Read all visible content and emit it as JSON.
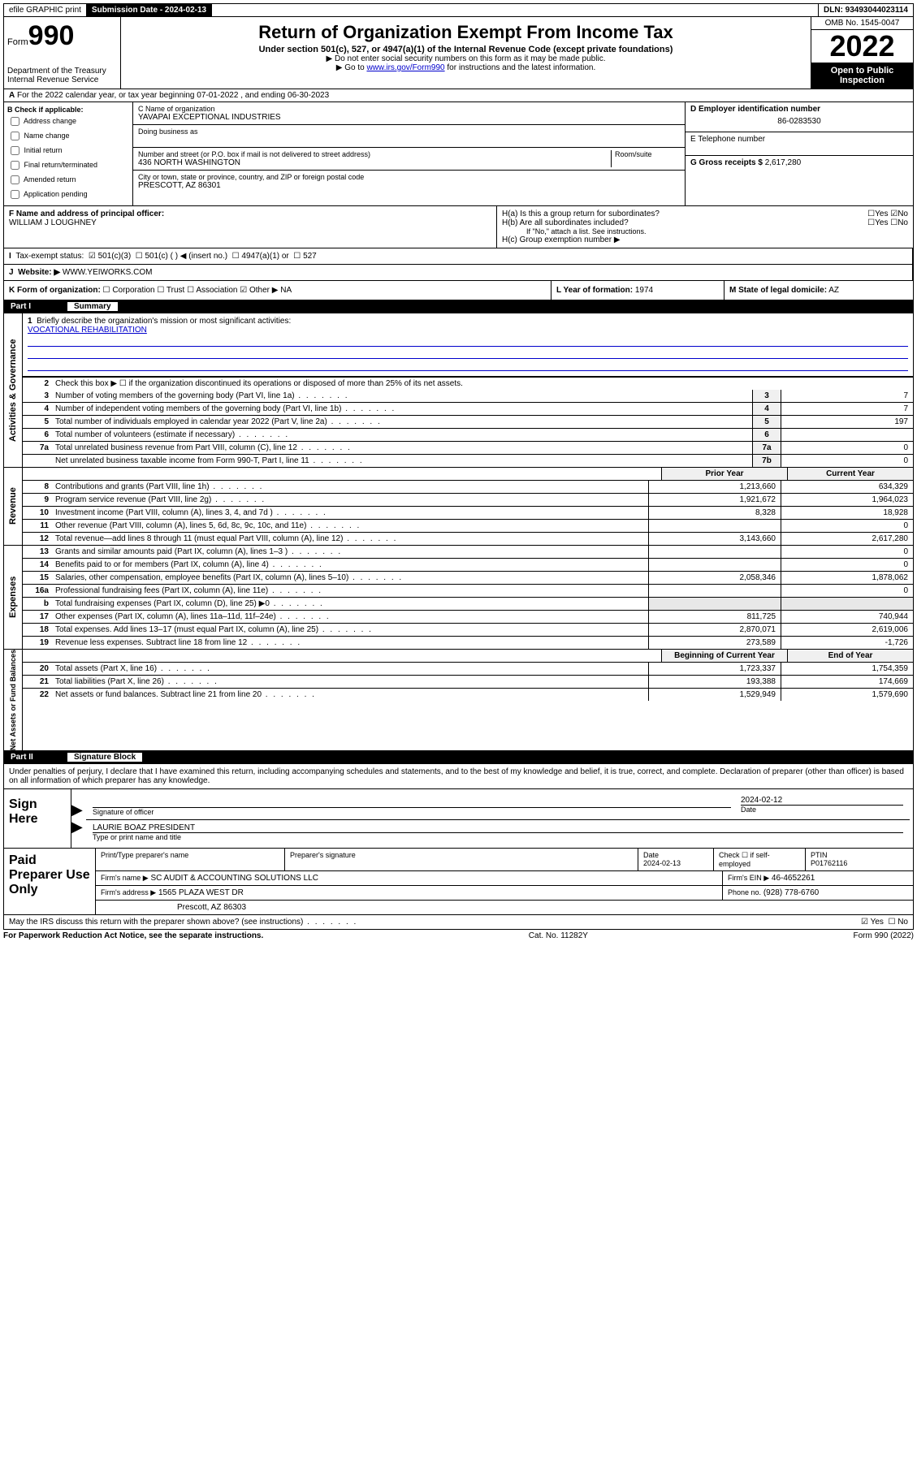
{
  "top": {
    "efile": "efile GRAPHIC print",
    "submission_label": "Submission Date - 2024-02-13",
    "dln": "DLN: 93493044023114"
  },
  "header": {
    "form_prefix": "Form",
    "form_number": "990",
    "dept": "Department of the Treasury",
    "irs": "Internal Revenue Service",
    "title": "Return of Organization Exempt From Income Tax",
    "subtitle": "Under section 501(c), 527, or 4947(a)(1) of the Internal Revenue Code (except private foundations)",
    "note1": "▶ Do not enter social security numbers on this form as it may be made public.",
    "note2_prefix": "▶ Go to ",
    "note2_link": "www.irs.gov/Form990",
    "note2_suffix": " for instructions and the latest information.",
    "omb": "OMB No. 1545-0047",
    "year": "2022",
    "open": "Open to Public Inspection"
  },
  "row_a": "For the 2022 calendar year, or tax year beginning 07-01-2022   , and ending 06-30-2023",
  "section_b": {
    "label": "B Check if applicable:",
    "opts": [
      "Address change",
      "Name change",
      "Initial return",
      "Final return/terminated",
      "Amended return",
      "Application pending"
    ]
  },
  "section_c": {
    "name_label": "C Name of organization",
    "name": "YAVAPAI EXCEPTIONAL INDUSTRIES",
    "dba_label": "Doing business as",
    "addr_label": "Number and street (or P.O. box if mail is not delivered to street address)",
    "room_label": "Room/suite",
    "addr": "436 NORTH WASHINGTON",
    "city_label": "City or town, state or province, country, and ZIP or foreign postal code",
    "city": "PRESCOTT, AZ  86301"
  },
  "section_d": {
    "label": "D Employer identification number",
    "ein": "86-0283530"
  },
  "section_e": {
    "label": "E Telephone number"
  },
  "section_g": {
    "label": "G Gross receipts $",
    "value": "2,617,280"
  },
  "section_f": {
    "label": "F  Name and address of principal officer:",
    "name": "WILLIAM J LOUGHNEY"
  },
  "section_h": {
    "ha": "H(a)  Is this a group return for subordinates?",
    "hb": "H(b)  Are all subordinates included?",
    "hb_note": "If \"No,\" attach a list. See instructions.",
    "hc": "H(c)  Group exemption number ▶",
    "yes": "Yes",
    "no": "No"
  },
  "section_i": {
    "label": "Tax-exempt status:",
    "o1": "501(c)(3)",
    "o2": "501(c) (  ) ◀ (insert no.)",
    "o3": "4947(a)(1) or",
    "o4": "527"
  },
  "section_j": {
    "label": "Website: ▶",
    "value": "WWW.YEIWORKS.COM"
  },
  "section_k": {
    "label": "K Form of organization:",
    "o1": "Corporation",
    "o2": "Trust",
    "o3": "Association",
    "o4": "Other ▶",
    "o4v": "NA"
  },
  "section_l": {
    "label": "L Year of formation:",
    "value": "1974"
  },
  "section_m": {
    "label": "M State of legal domicile:",
    "value": "AZ"
  },
  "part1": {
    "label": "Part I",
    "title": "Summary"
  },
  "summary": {
    "vtabs": [
      "Activities & Governance",
      "Revenue",
      "Expenses",
      "Net Assets or Fund Balances"
    ],
    "l1": "Briefly describe the organization's mission or most significant activities:",
    "mission": "VOCATIONAL REHABILITATION",
    "l2": "Check this box ▶ ☐  if the organization discontinued its operations or disposed of more than 25% of its net assets.",
    "lines_gov": [
      {
        "n": "3",
        "d": "Number of voting members of the governing body (Part VI, line 1a)",
        "box": "3",
        "v": "7"
      },
      {
        "n": "4",
        "d": "Number of independent voting members of the governing body (Part VI, line 1b)",
        "box": "4",
        "v": "7"
      },
      {
        "n": "5",
        "d": "Total number of individuals employed in calendar year 2022 (Part V, line 2a)",
        "box": "5",
        "v": "197"
      },
      {
        "n": "6",
        "d": "Total number of volunteers (estimate if necessary)",
        "box": "6",
        "v": ""
      },
      {
        "n": "7a",
        "d": "Total unrelated business revenue from Part VIII, column (C), line 12",
        "box": "7a",
        "v": "0"
      },
      {
        "n": "",
        "d": "Net unrelated business taxable income from Form 990-T, Part I, line 11",
        "box": "7b",
        "v": "0"
      }
    ],
    "col_prior": "Prior Year",
    "col_current": "Current Year",
    "lines_rev": [
      {
        "n": "8",
        "d": "Contributions and grants (Part VIII, line 1h)",
        "p": "1,213,660",
        "c": "634,329"
      },
      {
        "n": "9",
        "d": "Program service revenue (Part VIII, line 2g)",
        "p": "1,921,672",
        "c": "1,964,023"
      },
      {
        "n": "10",
        "d": "Investment income (Part VIII, column (A), lines 3, 4, and 7d )",
        "p": "8,328",
        "c": "18,928"
      },
      {
        "n": "11",
        "d": "Other revenue (Part VIII, column (A), lines 5, 6d, 8c, 9c, 10c, and 11e)",
        "p": "",
        "c": "0"
      },
      {
        "n": "12",
        "d": "Total revenue—add lines 8 through 11 (must equal Part VIII, column (A), line 12)",
        "p": "3,143,660",
        "c": "2,617,280"
      }
    ],
    "lines_exp": [
      {
        "n": "13",
        "d": "Grants and similar amounts paid (Part IX, column (A), lines 1–3 )",
        "p": "",
        "c": "0"
      },
      {
        "n": "14",
        "d": "Benefits paid to or for members (Part IX, column (A), line 4)",
        "p": "",
        "c": "0"
      },
      {
        "n": "15",
        "d": "Salaries, other compensation, employee benefits (Part IX, column (A), lines 5–10)",
        "p": "2,058,346",
        "c": "1,878,062"
      },
      {
        "n": "16a",
        "d": "Professional fundraising fees (Part IX, column (A), line 11e)",
        "p": "",
        "c": "0"
      },
      {
        "n": "b",
        "d": "Total fundraising expenses (Part IX, column (D), line 25) ▶0",
        "p": "GREY",
        "c": "GREY"
      },
      {
        "n": "17",
        "d": "Other expenses (Part IX, column (A), lines 11a–11d, 11f–24e)",
        "p": "811,725",
        "c": "740,944"
      },
      {
        "n": "18",
        "d": "Total expenses. Add lines 13–17 (must equal Part IX, column (A), line 25)",
        "p": "2,870,071",
        "c": "2,619,006"
      },
      {
        "n": "19",
        "d": "Revenue less expenses. Subtract line 18 from line 12",
        "p": "273,589",
        "c": "-1,726"
      }
    ],
    "col_begin": "Beginning of Current Year",
    "col_end": "End of Year",
    "lines_net": [
      {
        "n": "20",
        "d": "Total assets (Part X, line 16)",
        "p": "1,723,337",
        "c": "1,754,359"
      },
      {
        "n": "21",
        "d": "Total liabilities (Part X, line 26)",
        "p": "193,388",
        "c": "174,669"
      },
      {
        "n": "22",
        "d": "Net assets or fund balances. Subtract line 21 from line 20",
        "p": "1,529,949",
        "c": "1,579,690"
      }
    ]
  },
  "part2": {
    "label": "Part II",
    "title": "Signature Block"
  },
  "sig_text": "Under penalties of perjury, I declare that I have examined this return, including accompanying schedules and statements, and to the best of my knowledge and belief, it is true, correct, and complete. Declaration of preparer (other than officer) is based on all information of which preparer has any knowledge.",
  "sign": {
    "label": "Sign Here",
    "sig_label": "Signature of officer",
    "date": "2024-02-12",
    "date_label": "Date",
    "name": "LAURIE BOAZ PRESIDENT",
    "name_label": "Type or print name and title"
  },
  "paid": {
    "label": "Paid Preparer Use Only",
    "h1": "Print/Type preparer's name",
    "h2": "Preparer's signature",
    "h3": "Date",
    "h3v": "2024-02-13",
    "h4": "Check ☐ if self-employed",
    "h5": "PTIN",
    "h5v": "P01762116",
    "firm_name_label": "Firm's name    ▶",
    "firm_name": "SC AUDIT & ACCOUNTING SOLUTIONS LLC",
    "firm_ein_label": "Firm's EIN ▶",
    "firm_ein": "46-4652261",
    "firm_addr_label": "Firm's address ▶",
    "firm_addr1": "1565 PLAZA WEST DR",
    "firm_addr2": "Prescott, AZ  86303",
    "phone_label": "Phone no.",
    "phone": "(928) 778-6760"
  },
  "discuss": {
    "text": "May the IRS discuss this return with the preparer shown above? (see instructions)",
    "yes": "Yes",
    "no": "No"
  },
  "footer": {
    "l": "For Paperwork Reduction Act Notice, see the separate instructions.",
    "m": "Cat. No. 11282Y",
    "r": "Form 990 (2022)"
  }
}
